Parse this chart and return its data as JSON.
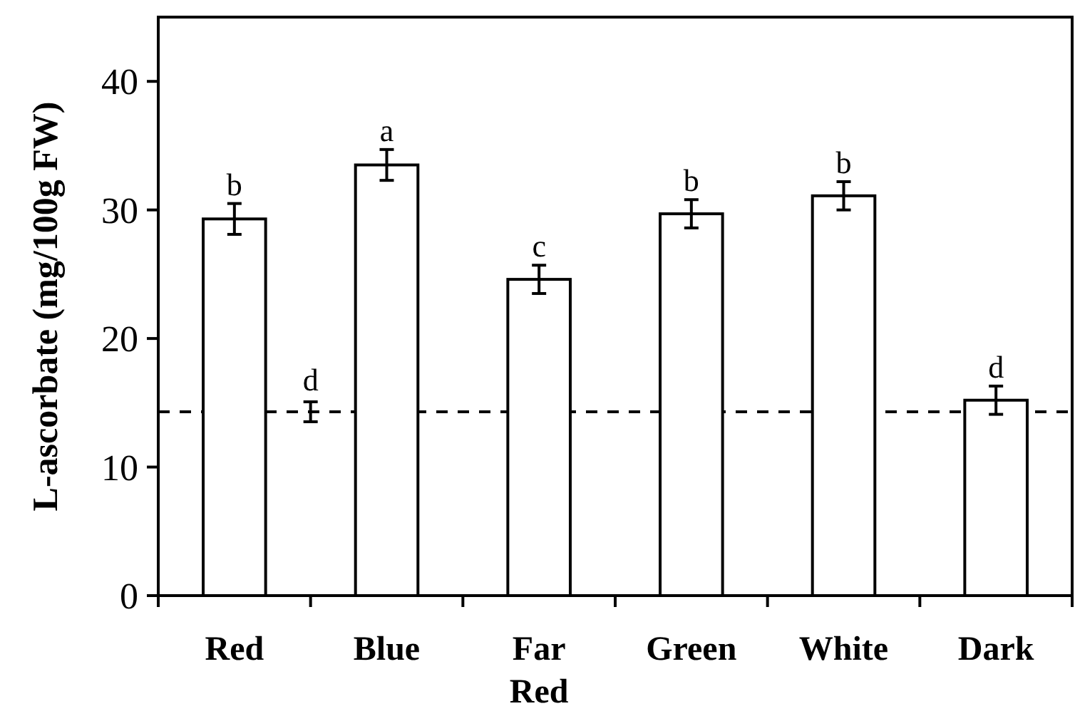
{
  "chart_data": {
    "type": "bar",
    "ylabel": "L-ascorbate (mg/100g FW)",
    "categories": [
      "Red",
      "Blue",
      "Far Red",
      "Green",
      "White",
      "Dark"
    ],
    "values": [
      29.3,
      33.5,
      24.6,
      29.7,
      31.1,
      15.2
    ],
    "errors": [
      1.2,
      1.2,
      1.1,
      1.1,
      1.1,
      1.1
    ],
    "value_labels": [
      "b",
      "a",
      "c",
      "b",
      "b",
      "d"
    ],
    "color": "#ffffff",
    "ylim": [
      0,
      45
    ],
    "yticks": [
      0,
      10,
      20,
      30,
      40
    ],
    "ref_lines": [
      {
        "axis": "y",
        "value": 14.3,
        "label": "d",
        "line_style": "dashed",
        "color": "#000000"
      }
    ],
    "grid": false
  }
}
